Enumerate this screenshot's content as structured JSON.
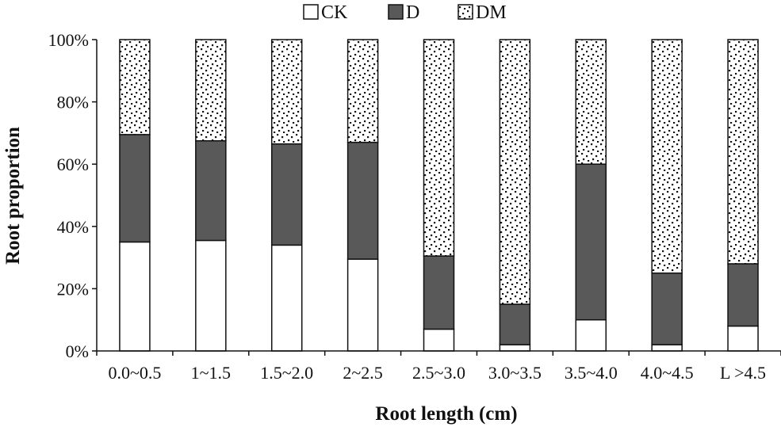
{
  "chart_data": {
    "type": "bar",
    "stacked": true,
    "title": "",
    "xlabel": "Root length (cm)",
    "ylabel": "Root proportion",
    "ylim": [
      0,
      100
    ],
    "yticks": [
      "0%",
      "20%",
      "40%",
      "60%",
      "80%",
      "100%"
    ],
    "legend_position": "top-center",
    "categories": [
      "0.0~0.5",
      "1~1.5",
      "1.5~2.0",
      "2~2.5",
      "2.5~3.0",
      "3.0~3.5",
      "3.5~4.0",
      "4.0~4.5",
      "L >4.5"
    ],
    "series": [
      {
        "name": "CK",
        "fill": "#ffffff",
        "pattern": "none",
        "values": [
          35,
          35.5,
          34,
          29.5,
          7,
          2,
          10,
          2,
          8
        ]
      },
      {
        "name": "D",
        "fill": "#595959",
        "pattern": "none",
        "values": [
          34.5,
          32,
          32.5,
          37.5,
          23.5,
          13,
          50,
          23,
          20
        ]
      },
      {
        "name": "DM",
        "fill": "#ffffff",
        "pattern": "dots",
        "values": [
          30.5,
          32.5,
          33.5,
          33,
          69.5,
          85,
          40,
          75,
          72
        ]
      }
    ]
  }
}
